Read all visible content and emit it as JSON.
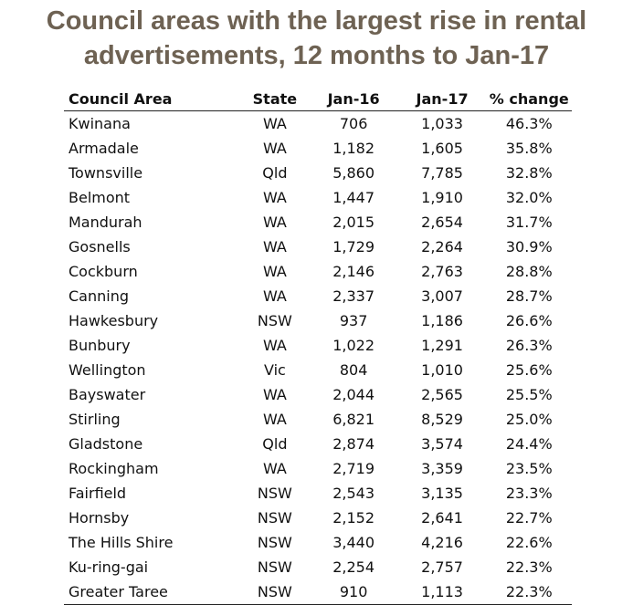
{
  "title": {
    "line1": "Council areas with the largest rise in rental",
    "line2": "advertisements, 12 months to Jan-17"
  },
  "chart_data": {
    "type": "table",
    "title": "Council areas with the largest rise in rental advertisements, 12 months to Jan-17",
    "columns": [
      "Council Area",
      "State",
      "Jan-16",
      "Jan-17",
      "% change"
    ],
    "rows": [
      [
        "Kwinana",
        "WA",
        "706",
        "1,033",
        "46.3%"
      ],
      [
        "Armadale",
        "WA",
        "1,182",
        "1,605",
        "35.8%"
      ],
      [
        "Townsville",
        "Qld",
        "5,860",
        "7,785",
        "32.8%"
      ],
      [
        "Belmont",
        "WA",
        "1,447",
        "1,910",
        "32.0%"
      ],
      [
        "Mandurah",
        "WA",
        "2,015",
        "2,654",
        "31.7%"
      ],
      [
        "Gosnells",
        "WA",
        "1,729",
        "2,264",
        "30.9%"
      ],
      [
        "Cockburn",
        "WA",
        "2,146",
        "2,763",
        "28.8%"
      ],
      [
        "Canning",
        "WA",
        "2,337",
        "3,007",
        "28.7%"
      ],
      [
        "Hawkesbury",
        "NSW",
        "937",
        "1,186",
        "26.6%"
      ],
      [
        "Bunbury",
        "WA",
        "1,022",
        "1,291",
        "26.3%"
      ],
      [
        "Wellington",
        "Vic",
        "804",
        "1,010",
        "25.6%"
      ],
      [
        "Bayswater",
        "WA",
        "2,044",
        "2,565",
        "25.5%"
      ],
      [
        "Stirling",
        "WA",
        "6,821",
        "8,529",
        "25.0%"
      ],
      [
        "Gladstone",
        "Qld",
        "2,874",
        "3,574",
        "24.4%"
      ],
      [
        "Rockingham",
        "WA",
        "2,719",
        "3,359",
        "23.5%"
      ],
      [
        "Fairfield",
        "NSW",
        "2,543",
        "3,135",
        "23.3%"
      ],
      [
        "Hornsby",
        "NSW",
        "2,152",
        "2,641",
        "22.7%"
      ],
      [
        "The Hills Shire",
        "NSW",
        "3,440",
        "4,216",
        "22.6%"
      ],
      [
        "Ku-ring-gai",
        "NSW",
        "2,254",
        "2,757",
        "22.3%"
      ],
      [
        "Greater Taree",
        "NSW",
        "910",
        "1,113",
        "22.3%"
      ]
    ]
  }
}
